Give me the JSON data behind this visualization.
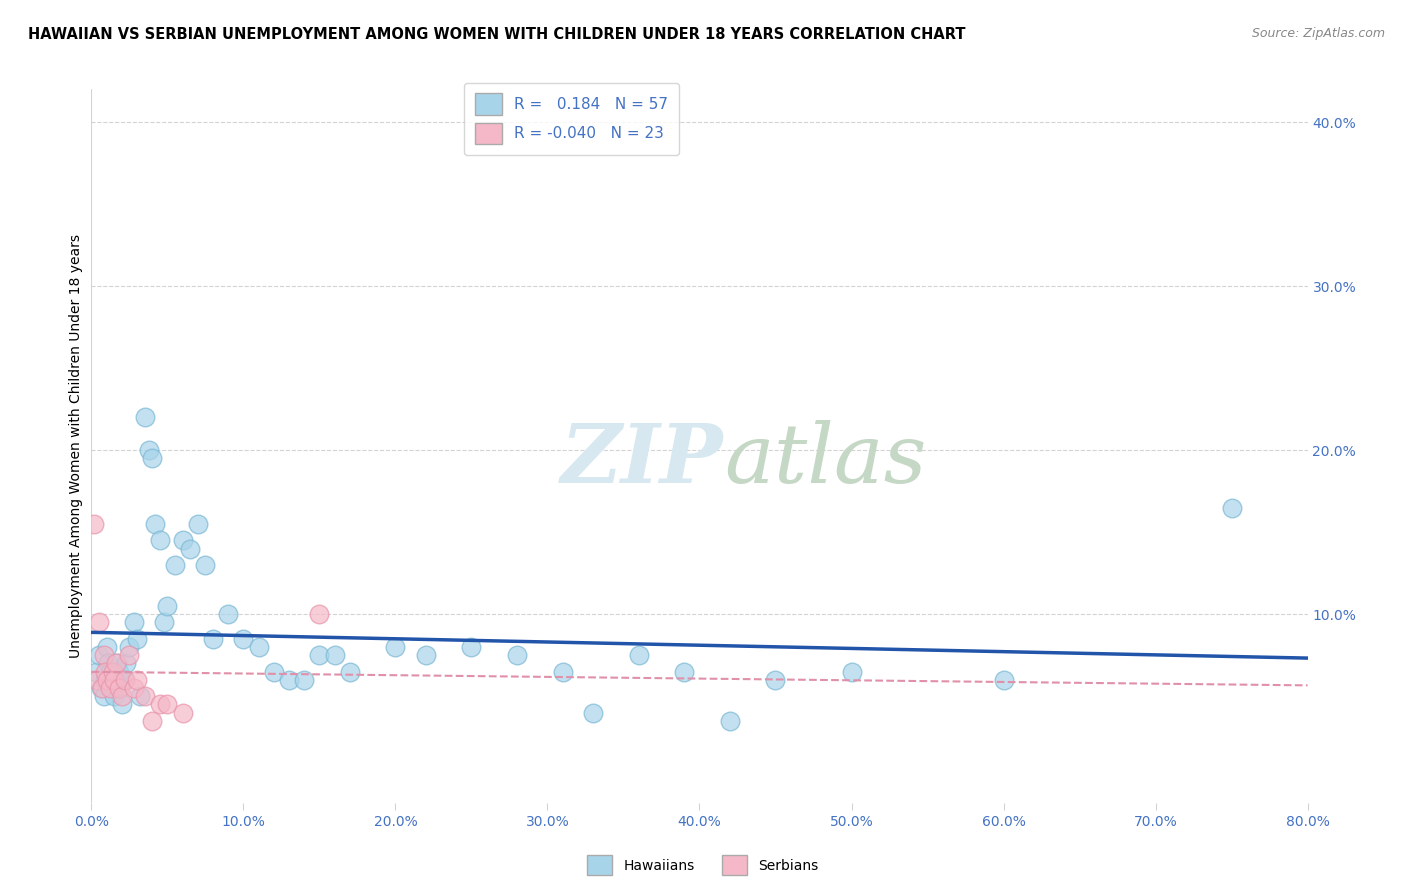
{
  "title": "HAWAIIAN VS SERBIAN UNEMPLOYMENT AMONG WOMEN WITH CHILDREN UNDER 18 YEARS CORRELATION CHART",
  "source": "Source: ZipAtlas.com",
  "ylabel": "Unemployment Among Women with Children Under 18 years",
  "xlim": [
    0.0,
    0.8
  ],
  "ylim": [
    -0.015,
    0.42
  ],
  "hawaiian_r": 0.184,
  "hawaiian_n": 57,
  "serbian_r": -0.04,
  "serbian_n": 23,
  "hawaiian_color": "#A8D4EA",
  "serbian_color": "#F5B8C8",
  "hawaiian_edge_color": "#7BB8D4",
  "serbian_edge_color": "#E895AB",
  "hawaiian_line_color": "#2255AA",
  "serbian_line_color": "#E090A8",
  "watermark_color": "#D8E8F0",
  "hawaiian_x": [
    0.003,
    0.005,
    0.006,
    0.008,
    0.009,
    0.01,
    0.011,
    0.012,
    0.013,
    0.014,
    0.015,
    0.016,
    0.017,
    0.018,
    0.019,
    0.02,
    0.022,
    0.023,
    0.025,
    0.028,
    0.03,
    0.032,
    0.035,
    0.038,
    0.04,
    0.042,
    0.045,
    0.048,
    0.05,
    0.055,
    0.06,
    0.065,
    0.07,
    0.075,
    0.08,
    0.09,
    0.1,
    0.11,
    0.12,
    0.13,
    0.14,
    0.15,
    0.16,
    0.17,
    0.2,
    0.22,
    0.25,
    0.28,
    0.31,
    0.33,
    0.36,
    0.39,
    0.42,
    0.45,
    0.5,
    0.6,
    0.75
  ],
  "hawaiian_y": [
    0.065,
    0.075,
    0.055,
    0.05,
    0.06,
    0.08,
    0.07,
    0.065,
    0.06,
    0.055,
    0.05,
    0.06,
    0.07,
    0.065,
    0.055,
    0.045,
    0.06,
    0.07,
    0.08,
    0.095,
    0.085,
    0.05,
    0.22,
    0.2,
    0.195,
    0.155,
    0.145,
    0.095,
    0.105,
    0.13,
    0.145,
    0.14,
    0.155,
    0.13,
    0.085,
    0.1,
    0.085,
    0.08,
    0.065,
    0.06,
    0.06,
    0.075,
    0.075,
    0.065,
    0.08,
    0.075,
    0.08,
    0.075,
    0.065,
    0.04,
    0.075,
    0.065,
    0.035,
    0.06,
    0.065,
    0.06,
    0.165
  ],
  "serbian_x": [
    0.002,
    0.004,
    0.005,
    0.007,
    0.008,
    0.009,
    0.01,
    0.012,
    0.014,
    0.015,
    0.016,
    0.018,
    0.02,
    0.022,
    0.025,
    0.028,
    0.03,
    0.035,
    0.04,
    0.045,
    0.05,
    0.06,
    0.15
  ],
  "serbian_y": [
    0.155,
    0.06,
    0.095,
    0.055,
    0.075,
    0.065,
    0.06,
    0.055,
    0.065,
    0.06,
    0.07,
    0.055,
    0.05,
    0.06,
    0.075,
    0.055,
    0.06,
    0.05,
    0.035,
    0.045,
    0.045,
    0.04,
    0.1
  ]
}
